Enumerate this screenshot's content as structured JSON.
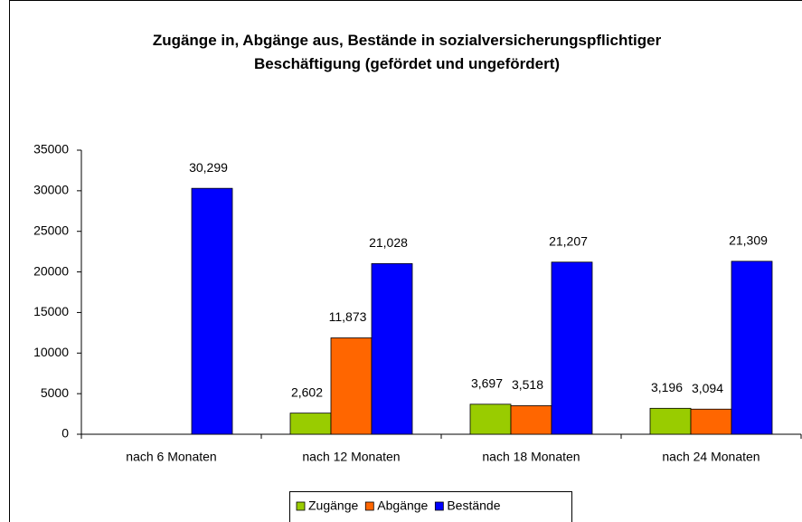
{
  "chart_data": {
    "type": "bar",
    "title": "Zugänge in, Abgänge aus, Bestände in sozialversicherungspflichtiger Beschäftigung (gefördet und ungefördert)",
    "categories": [
      "nach 6 Monaten",
      "nach 12 Monaten",
      "nach 18 Monaten",
      "nach 24 Monaten"
    ],
    "series": [
      {
        "name": "Zugänge",
        "color": "#99cc00",
        "values": [
          null,
          2602,
          3697,
          3196
        ],
        "value_labels": [
          null,
          "2,602",
          "3,697",
          "3,196"
        ]
      },
      {
        "name": "Abgänge",
        "color": "#ff6600",
        "values": [
          null,
          11873,
          3518,
          3094
        ],
        "value_labels": [
          null,
          "11,873",
          "3,518",
          "3,094"
        ]
      },
      {
        "name": "Bestände",
        "color": "#0000ff",
        "values": [
          30299,
          21028,
          21207,
          21309
        ],
        "value_labels": [
          "30,299",
          "21,028",
          "21,207",
          "21,309"
        ]
      }
    ],
    "ylim": [
      0,
      35000
    ],
    "yticks": [
      0,
      5000,
      10000,
      15000,
      20000,
      25000,
      30000,
      35000
    ],
    "grid": false,
    "legend": "bottom"
  }
}
